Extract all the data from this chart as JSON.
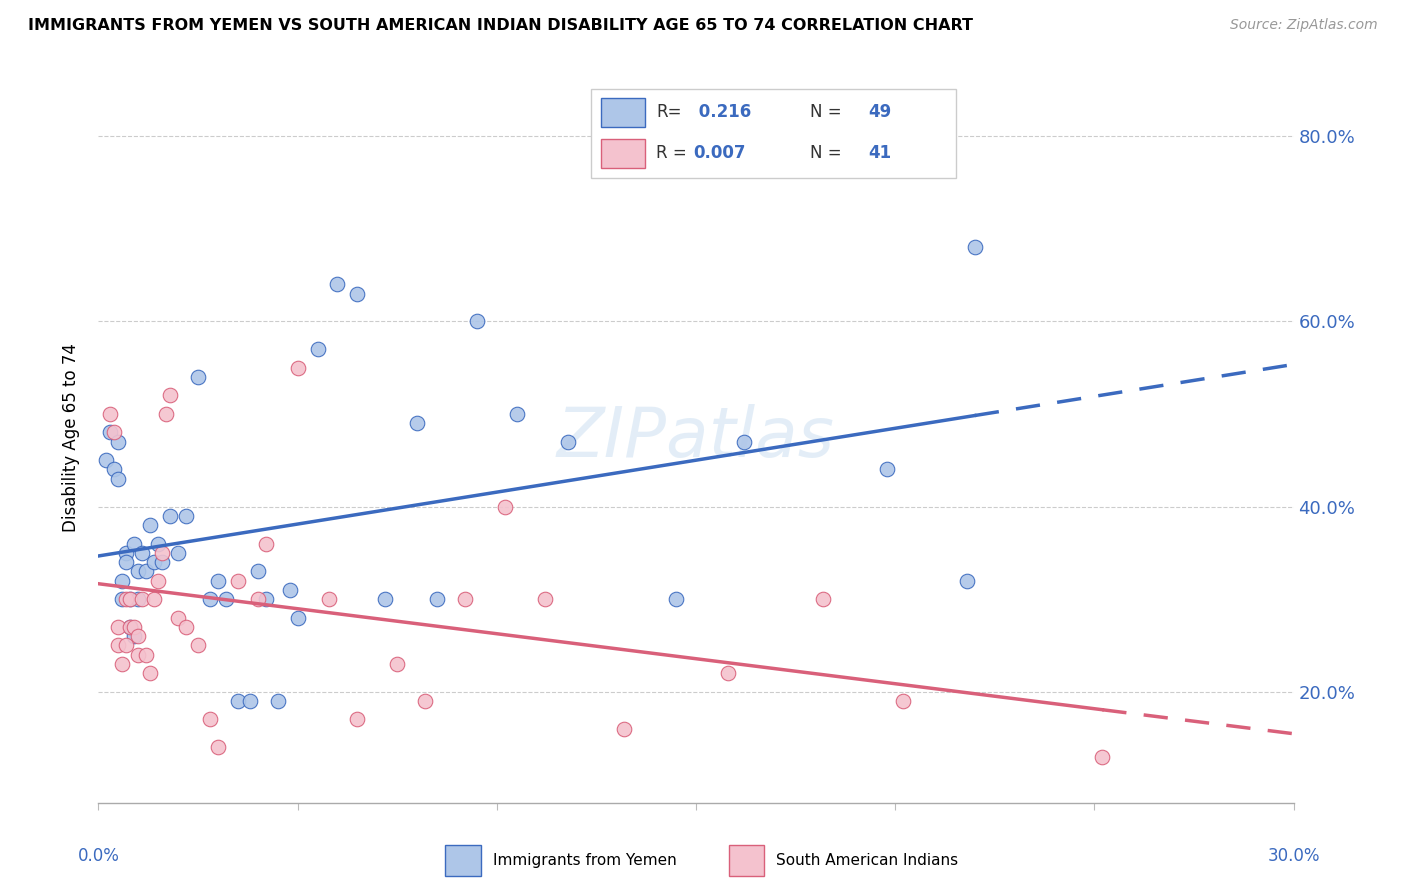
{
  "title": "IMMIGRANTS FROM YEMEN VS SOUTH AMERICAN INDIAN DISABILITY AGE 65 TO 74 CORRELATION CHART",
  "source": "Source: ZipAtlas.com",
  "ylabel": "Disability Age 65 to 74",
  "xlim": [
    0.0,
    0.3
  ],
  "ylim": [
    0.08,
    0.87
  ],
  "yticks": [
    0.2,
    0.4,
    0.6,
    0.8
  ],
  "ytick_labels": [
    "20.0%",
    "40.0%",
    "60.0%",
    "80.0%"
  ],
  "xticks": [
    0.0,
    0.05,
    0.1,
    0.15,
    0.2,
    0.25,
    0.3
  ],
  "R_yemen": 0.216,
  "N_yemen": 49,
  "R_indian": 0.007,
  "N_indian": 41,
  "color_yemen": "#aec6e8",
  "color_indian": "#f4c2ce",
  "line_color_yemen": "#3b6abf",
  "line_color_indian": "#d9607a",
  "watermark": "ZIPatlas",
  "yemen_x": [
    0.002,
    0.003,
    0.004,
    0.005,
    0.005,
    0.006,
    0.006,
    0.007,
    0.007,
    0.008,
    0.008,
    0.009,
    0.009,
    0.01,
    0.01,
    0.011,
    0.012,
    0.013,
    0.014,
    0.015,
    0.016,
    0.018,
    0.02,
    0.022,
    0.025,
    0.028,
    0.03,
    0.032,
    0.035,
    0.038,
    0.04,
    0.042,
    0.045,
    0.048,
    0.05,
    0.055,
    0.06,
    0.065,
    0.072,
    0.08,
    0.085,
    0.095,
    0.105,
    0.118,
    0.145,
    0.162,
    0.198,
    0.218,
    0.22
  ],
  "yemen_y": [
    0.45,
    0.48,
    0.44,
    0.43,
    0.47,
    0.3,
    0.32,
    0.35,
    0.34,
    0.3,
    0.27,
    0.26,
    0.36,
    0.33,
    0.3,
    0.35,
    0.33,
    0.38,
    0.34,
    0.36,
    0.34,
    0.39,
    0.35,
    0.39,
    0.54,
    0.3,
    0.32,
    0.3,
    0.19,
    0.19,
    0.33,
    0.3,
    0.19,
    0.31,
    0.28,
    0.57,
    0.64,
    0.63,
    0.3,
    0.49,
    0.3,
    0.6,
    0.5,
    0.47,
    0.3,
    0.47,
    0.44,
    0.32,
    0.68
  ],
  "indian_x": [
    0.003,
    0.004,
    0.005,
    0.005,
    0.006,
    0.007,
    0.007,
    0.008,
    0.008,
    0.009,
    0.01,
    0.01,
    0.011,
    0.012,
    0.013,
    0.014,
    0.015,
    0.016,
    0.017,
    0.018,
    0.02,
    0.022,
    0.025,
    0.028,
    0.03,
    0.035,
    0.04,
    0.042,
    0.05,
    0.058,
    0.065,
    0.075,
    0.082,
    0.092,
    0.102,
    0.112,
    0.132,
    0.158,
    0.182,
    0.202,
    0.252
  ],
  "indian_y": [
    0.5,
    0.48,
    0.27,
    0.25,
    0.23,
    0.3,
    0.25,
    0.3,
    0.27,
    0.27,
    0.26,
    0.24,
    0.3,
    0.24,
    0.22,
    0.3,
    0.32,
    0.35,
    0.5,
    0.52,
    0.28,
    0.27,
    0.25,
    0.17,
    0.14,
    0.32,
    0.3,
    0.36,
    0.55,
    0.3,
    0.17,
    0.23,
    0.19,
    0.3,
    0.4,
    0.3,
    0.16,
    0.22,
    0.3,
    0.19,
    0.13
  ]
}
